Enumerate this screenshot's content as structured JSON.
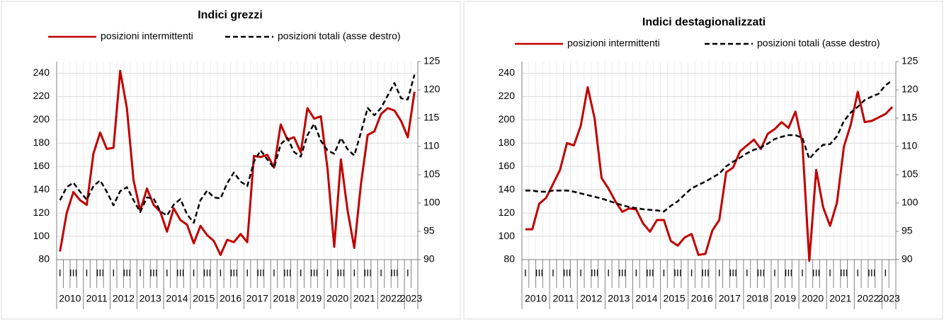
{
  "chart_data": [
    {
      "type": "line",
      "title": "Indici grezzi",
      "categories": [
        "I",
        null,
        "III",
        null,
        "I",
        null,
        "III",
        null,
        "I",
        null,
        "III",
        null,
        "I",
        null,
        "III",
        null,
        "I",
        null,
        "III",
        null,
        "I",
        null,
        "III",
        null,
        "I",
        null,
        "III",
        null,
        "I",
        null,
        "III",
        null,
        "I",
        null,
        "III",
        null,
        "I",
        null,
        "III",
        null,
        "I",
        null,
        "III",
        null,
        "I",
        null,
        "III",
        null,
        "I",
        null,
        "III",
        null,
        "I",
        null
      ],
      "year_labels": [
        "2010",
        "2011",
        "2012",
        "2013",
        "2014",
        "2015",
        "2016",
        "2017",
        "2018",
        "2019",
        "2020",
        "2021",
        "2022",
        "2023"
      ],
      "series": [
        {
          "name": "posizioni intermittenti",
          "color": "#c00000",
          "dash": "solid",
          "values": [
            87,
            120,
            138,
            131,
            127,
            171,
            189,
            175,
            176,
            242,
            210,
            148,
            122,
            141,
            127,
            121,
            104,
            124,
            114,
            110,
            94,
            109,
            101,
            96,
            84,
            97,
            95,
            102,
            95,
            169,
            168,
            170,
            159,
            196,
            183,
            185,
            172,
            210,
            201,
            203,
            158,
            91,
            166,
            122,
            90,
            145,
            187,
            190,
            205,
            210,
            208,
            199,
            185,
            224
          ]
        },
        {
          "name": "posizioni totali (asse destro)",
          "color": "#000000",
          "dash": "dashed",
          "axis": "y2",
          "values": [
            100.5,
            102.8,
            103.6,
            102,
            100.6,
            103,
            104,
            102,
            99.6,
            102.1,
            102.8,
            100.5,
            98.4,
            101,
            100.8,
            98.5,
            97.8,
            99.7,
            100.7,
            98,
            96.5,
            100.5,
            102.2,
            101,
            100.8,
            103.5,
            105.4,
            103.8,
            103,
            107.3,
            109.3,
            107.7,
            106.2,
            110.4,
            111.5,
            109,
            108.2,
            112,
            114,
            111,
            109.3,
            108.7,
            111.5,
            109.5,
            108.4,
            112.5,
            116.8,
            115.5,
            116.8,
            119,
            121.2,
            118.5,
            118.3,
            122.7
          ]
        }
      ],
      "ylim": [
        80,
        250
      ],
      "yticks": [
        80,
        100,
        120,
        140,
        160,
        180,
        200,
        220,
        240
      ],
      "y2lim": [
        90,
        125
      ],
      "y2ticks": [
        90,
        95,
        100,
        105,
        110,
        115,
        120,
        125
      ],
      "grid": true
    },
    {
      "type": "line",
      "title": "Indici destagionalizzati",
      "categories": [
        "I",
        null,
        "III",
        null,
        "I",
        null,
        "III",
        null,
        "I",
        null,
        "III",
        null,
        "I",
        null,
        "III",
        null,
        "I",
        null,
        "III",
        null,
        "I",
        null,
        "III",
        null,
        "I",
        null,
        "III",
        null,
        "I",
        null,
        "III",
        null,
        "I",
        null,
        "III",
        null,
        "I",
        null,
        "III",
        null,
        "I",
        null,
        "III",
        null,
        "I",
        null,
        "III",
        null,
        "I",
        null,
        "III",
        null,
        "I",
        null
      ],
      "year_labels": [
        "2010",
        "2011",
        "2012",
        "2013",
        "2014",
        "2015",
        "2016",
        "2017",
        "2018",
        "2019",
        "2020",
        "2021",
        "2022",
        "2023"
      ],
      "series": [
        {
          "name": "posizioni intermittenti",
          "color": "#c00000",
          "dash": "solid",
          "values": [
            106,
            106,
            128,
            133,
            145,
            157,
            180,
            178,
            195,
            228,
            201,
            150,
            141,
            130,
            121,
            124,
            123,
            111,
            104,
            114,
            114,
            96,
            92,
            99,
            102,
            84,
            85,
            105,
            114,
            155,
            159,
            173,
            178,
            183,
            175,
            188,
            192,
            198,
            193,
            207,
            180,
            79,
            157,
            125,
            109,
            129,
            177,
            196,
            224,
            198,
            199,
            202,
            205,
            211
          ]
        },
        {
          "name": "posizioni totali (asse destro)",
          "color": "#000000",
          "dash": "dashed",
          "axis": "y2",
          "values": [
            102.2,
            102.2,
            102,
            102,
            102.2,
            102.2,
            102.2,
            102,
            101.7,
            101.4,
            101.1,
            100.8,
            100.4,
            100,
            99.6,
            99.3,
            99.1,
            98.9,
            98.8,
            98.7,
            98.5,
            99.5,
            100.3,
            101.5,
            102.6,
            103.2,
            103.8,
            104.5,
            105.2,
            106.5,
            107.3,
            108,
            108.8,
            109.4,
            109.8,
            110.5,
            111.3,
            111.7,
            112,
            112,
            111.5,
            107.8,
            109.2,
            110.3,
            110.4,
            111.8,
            114.5,
            116,
            117,
            118.2,
            118.8,
            119.3,
            120.8,
            121.7
          ]
        }
      ],
      "ylim": [
        80,
        250
      ],
      "yticks": [
        80,
        100,
        120,
        140,
        160,
        180,
        200,
        220,
        240
      ],
      "y2lim": [
        90,
        125
      ],
      "y2ticks": [
        90,
        95,
        100,
        105,
        110,
        115,
        120,
        125
      ],
      "grid": true
    }
  ]
}
